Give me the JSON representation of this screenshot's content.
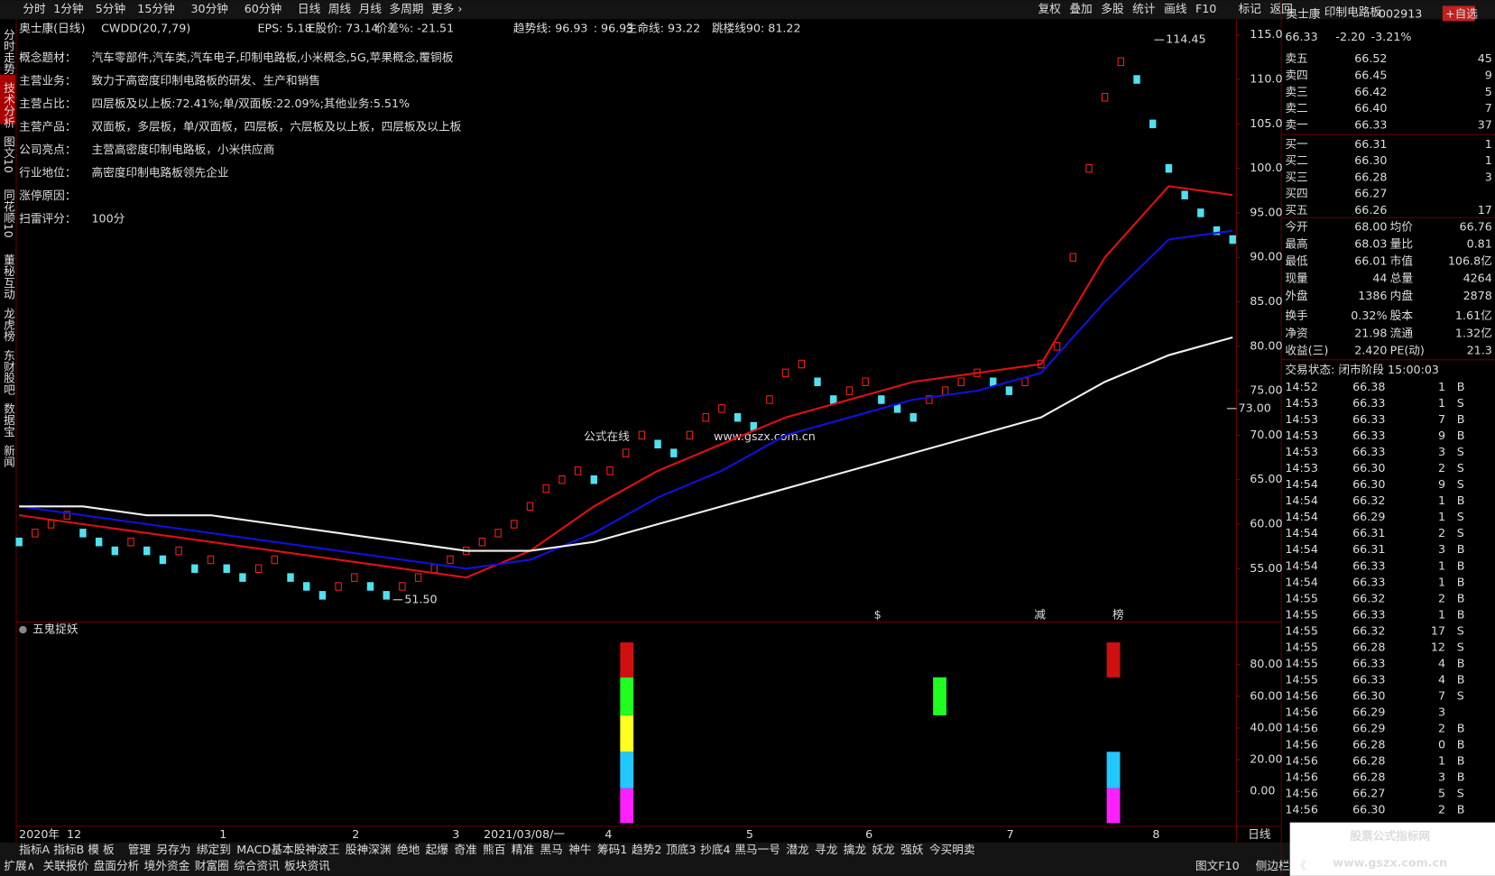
{
  "menu": [
    "分时",
    "1分钟",
    "5分钟",
    "15分钟",
    "30分钟",
    "60分钟",
    "日线",
    "周线",
    "月线",
    "多周期",
    "更多 ›"
  ],
  "menu_right": [
    "复权",
    "叠加",
    "多股",
    "统计",
    "画线",
    "F10",
    "标记",
    "返回"
  ],
  "side_tabs": [
    "分时走势",
    "技术分析",
    "图文10",
    "同花顺10",
    "董秘互动",
    "龙虎榜",
    "东财股吧",
    "数据宝",
    "新闻"
  ],
  "info_line": [
    "奥士康(日线)",
    "CWDD(20,7,79)",
    "EPS: 5.18",
    "E股价: 73.14",
    "价差%: -21.51",
    "趋势线: 96.93",
    ": 96.93",
    "生命线: 93.22",
    "跳楼线90: 81.22"
  ],
  "info_rows": [
    {
      "label": "概念题材：",
      "text": "汽车零部件,汽车类,汽车电子,印制电路板,小米概念,5G,苹果概念,覆铜板",
      "color": "#e040e0"
    },
    {
      "label": "主营业务：",
      "text": "致力于高密度印制电路板的研发、生产和销售",
      "color": "#e8e050"
    },
    {
      "label": "主营占比：",
      "text": "四层板及以上板:72.41%;单/双面板:22.09%;其他业务:5.51%",
      "color": "#ff3030"
    },
    {
      "label": "主营产品：",
      "text": "双面板，多层板，单/双面板，四层板，六层板及以上板，四层板及以上板",
      "color": "#30d0ff"
    },
    {
      "label": "公司亮点：",
      "text": "主营高密度印制电路板，小米供应商",
      "color": "#30e030"
    },
    {
      "label": "行业地位：",
      "text": "高密度印制电路板领先企业",
      "color": "#f0e040"
    },
    {
      "label": "涨停原因：",
      "color": "#4080ff"
    },
    {
      "label": "扫雷评分：",
      "text": "100分",
      "color": "#dddddd"
    }
  ],
  "watermark": [
    "公式在线",
    "www.gszx.com.cn"
  ],
  "chart_data": {
    "type": "line",
    "ylim": [
      49.2,
      115.7
    ],
    "yticks": [
      {
        "value": 115,
        "label": "115.0"
      },
      {
        "value": 110,
        "label": "110.0"
      },
      {
        "value": 105,
        "label": "105.0"
      },
      {
        "value": 100,
        "label": "100.0"
      },
      {
        "value": 95,
        "label": "95.00"
      },
      {
        "value": 90,
        "label": "90.00"
      },
      {
        "value": 85,
        "label": "85.00"
      },
      {
        "value": 80,
        "label": "80.00"
      },
      {
        "value": 75,
        "label": "75.00"
      },
      {
        "value": 70,
        "label": "70.00"
      },
      {
        "value": 65,
        "label": "65.00"
      },
      {
        "value": 60,
        "label": "60.00"
      },
      {
        "value": 55,
        "label": "55.00"
      }
    ],
    "x_labels": [
      "2020年",
      "12",
      "1",
      "2",
      "3",
      "2021/03/08/一",
      "4",
      "5",
      "6",
      "7",
      "8",
      "日线"
    ],
    "close": [
      58,
      59,
      60,
      61,
      59,
      58,
      57,
      58,
      57,
      56,
      57,
      55,
      56,
      55,
      54,
      55,
      56,
      54,
      53,
      52,
      53,
      54,
      53,
      52,
      53,
      54,
      55,
      56,
      57,
      58,
      59,
      60,
      62,
      64,
      65,
      66,
      65,
      66,
      68,
      70,
      69,
      68,
      70,
      72,
      73,
      72,
      71,
      74,
      77,
      78,
      76,
      74,
      75,
      76,
      74,
      73,
      72,
      74,
      75,
      76,
      77,
      76,
      75,
      76,
      78,
      80,
      90,
      100,
      108,
      112,
      110,
      105,
      100,
      97,
      95,
      93,
      92
    ],
    "series": [
      {
        "name": "red",
        "color": "#e01010",
        "values": [
          61,
          60,
          59,
          58,
          57,
          56,
          55,
          54,
          57,
          62,
          66,
          69,
          72,
          74,
          76,
          77,
          78,
          90,
          98,
          97
        ]
      },
      {
        "name": "blue",
        "color": "#1010e0",
        "values": [
          62,
          61,
          60,
          59,
          58,
          57,
          56,
          55,
          56,
          59,
          63,
          66,
          70,
          72,
          74,
          75,
          77,
          85,
          92,
          93
        ]
      },
      {
        "name": "white",
        "color": "#f0f0f0",
        "values": [
          62,
          62,
          61,
          61,
          60,
          59,
          58,
          57,
          57,
          58,
          60,
          62,
          64,
          66,
          68,
          70,
          72,
          76,
          79,
          81
        ]
      }
    ],
    "annotations": [
      {
        "text": "114.45",
        "value": 114.45
      },
      {
        "text": "51.50",
        "value": 51.5
      },
      {
        "text": "73.00",
        "value": 73
      }
    ]
  },
  "indicator": {
    "title": "五鬼捉妖",
    "ylim": [
      -22,
      99
    ],
    "yticks": [
      {
        "value": 80,
        "label": "80.00"
      },
      {
        "value": 60,
        "label": "60.00"
      },
      {
        "value": 40,
        "label": "40.00"
      },
      {
        "value": 20,
        "label": "20.00"
      },
      {
        "value": 0,
        "label": "0.00"
      }
    ],
    "markers": [
      "$",
      "减",
      "榜"
    ],
    "bars": [
      {
        "segments": [
          {
            "low": -20,
            "high": 2,
            "color": "#ff20ff"
          },
          {
            "low": 2,
            "high": 25,
            "color": "#20c8ff"
          },
          {
            "low": 25,
            "high": 48,
            "color": "#ffff20"
          },
          {
            "low": 48,
            "high": 72,
            "color": "#20ff20"
          },
          {
            "low": 72,
            "high": 94,
            "color": "#d01010"
          }
        ]
      },
      {
        "segments": [
          {
            "low": 48,
            "high": 72,
            "color": "#20ff20"
          }
        ]
      },
      {
        "segments": [
          {
            "low": -20,
            "high": 2,
            "color": "#ff20ff"
          },
          {
            "low": 2,
            "high": 25,
            "color": "#20c8ff"
          },
          {
            "low": 72,
            "high": 94,
            "color": "#d01010"
          }
        ]
      }
    ]
  },
  "quote": {
    "name": "奥士康",
    "sector": "印制电路板",
    "code": "002913",
    "add": "+自选",
    "price": "66.33",
    "change": "-2.20",
    "pct": "-3.21%",
    "book": [
      [
        "卖五",
        "66.52",
        "45"
      ],
      [
        "卖四",
        "66.45",
        "9"
      ],
      [
        "卖三",
        "66.42",
        "5"
      ],
      [
        "卖二",
        "66.40",
        "7"
      ],
      [
        "卖一",
        "66.33",
        "37"
      ],
      [
        "买一",
        "66.31",
        "1"
      ],
      [
        "买二",
        "66.30",
        "1"
      ],
      [
        "买三",
        "66.28",
        "3"
      ],
      [
        "买四",
        "66.27"
      ],
      [
        "买五",
        "66.26",
        "17"
      ]
    ],
    "stats": [
      [
        "今开",
        "68.00",
        "均价",
        "66.76"
      ],
      [
        "最高",
        "68.03",
        "量比",
        "0.81"
      ],
      [
        "最低",
        "66.01",
        "市值",
        "106.8亿"
      ],
      [
        "现量",
        "44",
        "总量",
        "4264"
      ],
      [
        "外盘",
        "1386",
        "内盘",
        "2878"
      ],
      [
        "换手",
        "0.32%",
        "股本",
        "1.61亿"
      ],
      [
        "净资",
        "21.98",
        "流通",
        "1.32亿"
      ],
      [
        "收益(三)",
        "2.420",
        "PE(动)",
        "21.3"
      ]
    ],
    "status": "交易状态: 闭市阶段 15:00:03",
    "trades": [
      [
        "14:52",
        "66.38",
        "1",
        "B"
      ],
      [
        "14:53",
        "66.33",
        "1",
        "S"
      ],
      [
        "14:53",
        "66.33",
        "7",
        "B"
      ],
      [
        "14:53",
        "66.33",
        "9",
        "B"
      ],
      [
        "14:53",
        "66.33",
        "3",
        "S"
      ],
      [
        "14:53",
        "66.30",
        "2",
        "S"
      ],
      [
        "14:54",
        "66.30",
        "9",
        "S"
      ],
      [
        "14:54",
        "66.32",
        "1",
        "B"
      ],
      [
        "14:54",
        "66.29",
        "1",
        "S"
      ],
      [
        "14:54",
        "66.31",
        "2",
        "S"
      ],
      [
        "14:54",
        "66.31",
        "3",
        "B"
      ],
      [
        "14:54",
        "66.33",
        "1",
        "B"
      ],
      [
        "14:54",
        "66.33",
        "1",
        "B"
      ],
      [
        "14:55",
        "66.32",
        "2",
        "B"
      ],
      [
        "14:55",
        "66.33",
        "1",
        "B"
      ],
      [
        "14:55",
        "66.32",
        "17",
        "S"
      ],
      [
        "14:55",
        "66.28",
        "12",
        "S"
      ],
      [
        "14:55",
        "66.33",
        "4",
        "B"
      ],
      [
        "14:55",
        "66.33",
        "4",
        "B"
      ],
      [
        "14:56",
        "66.30",
        "7",
        "S"
      ],
      [
        "14:56",
        "66.29",
        "3"
      ],
      [
        "14:56",
        "66.29",
        "2",
        "B"
      ],
      [
        "14:56",
        "66.28",
        "0",
        "B"
      ],
      [
        "14:56",
        "66.28",
        "1",
        "B"
      ],
      [
        "14:56",
        "66.28",
        "3",
        "B"
      ],
      [
        "14:56",
        "66.27",
        "5",
        "S"
      ],
      [
        "14:56",
        "66.30",
        "2",
        "B"
      ]
    ]
  },
  "tabs": [
    "指标A",
    "指标B",
    "模 板",
    "管理",
    "另存为",
    "绑定到",
    "MACD基本",
    "股神波王",
    "股神深渊",
    "绝地",
    "起爆",
    "奇准",
    "熊百",
    "精准",
    "黑马",
    "神牛",
    "筹码1",
    "趋势2",
    "顶底3",
    "抄底4",
    "黑马一号",
    "潜龙",
    "寻龙",
    "擒龙",
    "妖龙",
    "强妖",
    "今买明卖"
  ],
  "tabs2": [
    "扩展∧",
    "关联报价",
    "盘面分析",
    "境外资金",
    "财富圈",
    "综合资讯",
    "板块资讯"
  ],
  "tabs2_right": [
    "图文F10",
    "侧边栏",
    "《"
  ],
  "brand": [
    "股票公式指标网",
    "www.gszx.com.cn"
  ]
}
